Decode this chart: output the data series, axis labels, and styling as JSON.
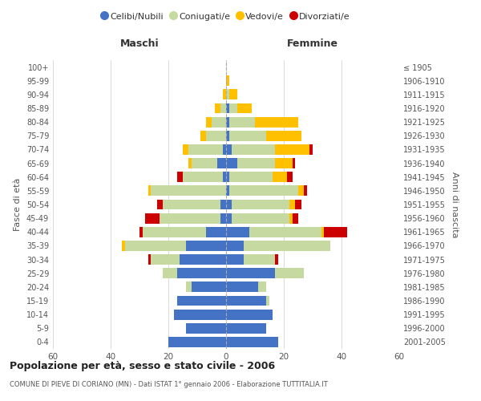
{
  "age_groups": [
    "0-4",
    "5-9",
    "10-14",
    "15-19",
    "20-24",
    "25-29",
    "30-34",
    "35-39",
    "40-44",
    "45-49",
    "50-54",
    "55-59",
    "60-64",
    "65-69",
    "70-74",
    "75-79",
    "80-84",
    "85-89",
    "90-94",
    "95-99",
    "100+"
  ],
  "birth_years": [
    "2001-2005",
    "1996-2000",
    "1991-1995",
    "1986-1990",
    "1981-1985",
    "1976-1980",
    "1971-1975",
    "1966-1970",
    "1961-1965",
    "1956-1960",
    "1951-1955",
    "1946-1950",
    "1941-1945",
    "1936-1940",
    "1931-1935",
    "1926-1930",
    "1921-1925",
    "1916-1920",
    "1911-1915",
    "1906-1910",
    "≤ 1905"
  ],
  "colors": {
    "celibi": "#4472c4",
    "coniugati": "#c5d9a0",
    "vedovi": "#ffc000",
    "divorziati": "#cc0000"
  },
  "male": {
    "celibi": [
      20,
      14,
      18,
      17,
      12,
      17,
      16,
      14,
      7,
      2,
      2,
      0,
      1,
      3,
      1,
      0,
      0,
      0,
      0,
      0,
      0
    ],
    "coniugati": [
      0,
      0,
      0,
      0,
      2,
      5,
      10,
      21,
      22,
      21,
      20,
      26,
      14,
      9,
      12,
      7,
      5,
      2,
      0,
      0,
      0
    ],
    "vedovi": [
      0,
      0,
      0,
      0,
      0,
      0,
      0,
      1,
      0,
      0,
      0,
      1,
      0,
      1,
      2,
      2,
      2,
      2,
      1,
      0,
      0
    ],
    "divorziati": [
      0,
      0,
      0,
      0,
      0,
      0,
      1,
      0,
      1,
      5,
      2,
      0,
      2,
      0,
      0,
      0,
      0,
      0,
      0,
      0,
      0
    ]
  },
  "female": {
    "celibi": [
      18,
      14,
      16,
      14,
      11,
      17,
      6,
      6,
      8,
      2,
      2,
      1,
      1,
      4,
      2,
      1,
      1,
      1,
      0,
      0,
      0
    ],
    "coniugati": [
      0,
      0,
      0,
      1,
      3,
      10,
      11,
      30,
      25,
      20,
      20,
      24,
      15,
      13,
      15,
      13,
      9,
      3,
      1,
      0,
      0
    ],
    "vedovi": [
      0,
      0,
      0,
      0,
      0,
      0,
      0,
      0,
      1,
      1,
      2,
      2,
      5,
      6,
      12,
      12,
      15,
      5,
      3,
      1,
      0
    ],
    "divorziati": [
      0,
      0,
      0,
      0,
      0,
      0,
      1,
      0,
      8,
      2,
      2,
      1,
      2,
      1,
      1,
      0,
      0,
      0,
      0,
      0,
      0
    ]
  },
  "xlim": 60,
  "title": "Popolazione per età, sesso e stato civile - 2006",
  "subtitle": "COMUNE DI PIEVE DI CORIANO (MN) - Dati ISTAT 1° gennaio 2006 - Elaborazione TUTTITALIA.IT",
  "ylabel_left": "Fasce di età",
  "ylabel_right": "Anni di nascita",
  "label_maschi": "Maschi",
  "label_femmine": "Femmine",
  "legend_labels": [
    "Celibi/Nubili",
    "Coniugati/e",
    "Vedovi/e",
    "Divorziati/e"
  ],
  "bg_color": "#ffffff",
  "grid_color": "#cccccc"
}
